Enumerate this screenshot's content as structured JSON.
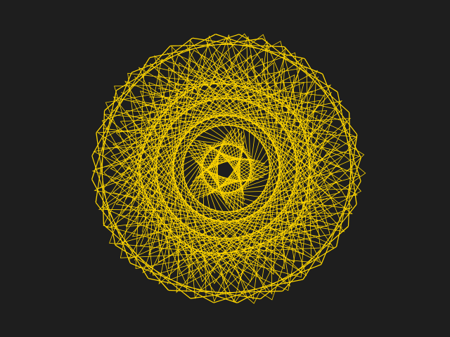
{
  "colors": {
    "background": "#1e1e1e",
    "stroke": "#ffd700"
  }
}
